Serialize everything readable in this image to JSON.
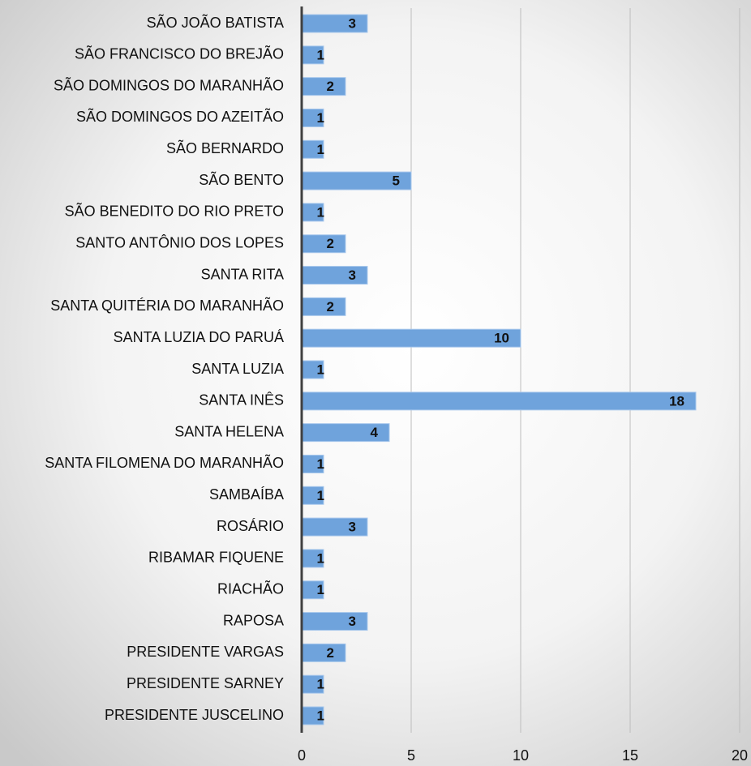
{
  "chart_data": {
    "type": "barh",
    "categories": [
      "SÃO JOÃO BATISTA",
      "SÃO FRANCISCO DO BREJÃO",
      "SÃO DOMINGOS DO MARANHÃO",
      "SÃO DOMINGOS DO AZEITÃO",
      "SÃO BERNARDO",
      "SÃO BENTO",
      "SÃO BENEDITO DO RIO PRETO",
      "SANTO ANTÔNIO DOS LOPES",
      "SANTA RITA",
      "SANTA QUITÉRIA DO MARANHÃO",
      "SANTA LUZIA DO PARUÁ",
      "SANTA LUZIA",
      "SANTA INÊS",
      "SANTA HELENA",
      "SANTA FILOMENA DO MARANHÃO",
      "SAMBAÍBA",
      "ROSÁRIO",
      "RIBAMAR FIQUENE",
      "RIACHÃO",
      "RAPOSA",
      "PRESIDENTE VARGAS",
      "PRESIDENTE SARNEY",
      "PRESIDENTE JUSCELINO"
    ],
    "values": [
      3,
      1,
      2,
      1,
      1,
      5,
      1,
      2,
      3,
      2,
      10,
      1,
      18,
      4,
      1,
      1,
      3,
      1,
      1,
      3,
      2,
      1,
      1
    ],
    "color": "#6fa3dc",
    "xlim": [
      0,
      20
    ],
    "xticks": [
      0,
      5,
      10,
      15,
      20
    ],
    "grid": true
  }
}
